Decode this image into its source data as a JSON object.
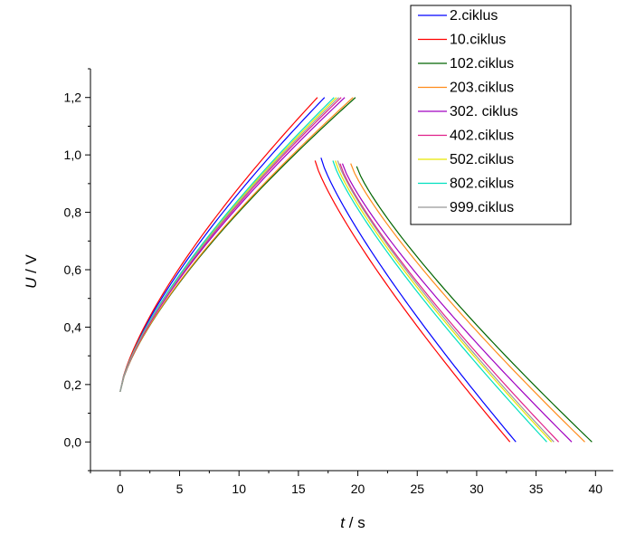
{
  "chart_data": {
    "type": "line",
    "xlabel": {
      "var": "t",
      "unit": " / s"
    },
    "ylabel": {
      "var": "U",
      "unit": " / V"
    },
    "xlim": [
      -2.5,
      41.5
    ],
    "ylim": [
      -0.1,
      1.3
    ],
    "xticks": [
      0,
      5,
      10,
      15,
      20,
      25,
      30,
      35,
      40
    ],
    "xtick_labels": [
      "0",
      "5",
      "10",
      "15",
      "20",
      "25",
      "30",
      "35",
      "40"
    ],
    "yticks": [
      0.0,
      0.2,
      0.4,
      0.6,
      0.8,
      1.0,
      1.2
    ],
    "ytick_labels": [
      "0,0",
      "0,2",
      "0,4",
      "0,6",
      "0,8",
      "1,0",
      "1,2"
    ],
    "grid": false,
    "legend_position": "top-right",
    "series": [
      {
        "name": "2.ciklus",
        "color": "#0000ff",
        "charge_end_t": 17.2,
        "discharge_start_t": 16.9,
        "discharge_start_v": 0.99,
        "discharge_end_t": 33.3
      },
      {
        "name": "10.ciklus",
        "color": "#ff0000",
        "charge_end_t": 16.6,
        "discharge_start_t": 16.4,
        "discharge_start_v": 0.98,
        "discharge_end_t": 32.8
      },
      {
        "name": "102.ciklus",
        "color": "#006400",
        "charge_end_t": 19.8,
        "discharge_start_t": 19.9,
        "discharge_start_v": 0.96,
        "discharge_end_t": 39.7
      },
      {
        "name": "203.ciklus",
        "color": "#ff8c1a",
        "charge_end_t": 19.6,
        "discharge_start_t": 19.4,
        "discharge_start_v": 0.97,
        "discharge_end_t": 39.1
      },
      {
        "name": "302. ciklus",
        "color": "#a000c0",
        "charge_end_t": 18.9,
        "discharge_start_t": 18.7,
        "discharge_start_v": 0.97,
        "discharge_end_t": 38.0
      },
      {
        "name": "402.ciklus",
        "color": "#e0208a",
        "charge_end_t": 18.6,
        "discharge_start_t": 18.5,
        "discharge_start_v": 0.97,
        "discharge_end_t": 36.9
      },
      {
        "name": "502.ciklus",
        "color": "#e6e600",
        "charge_end_t": 18.2,
        "discharge_start_t": 18.1,
        "discharge_start_v": 0.98,
        "discharge_end_t": 36.3
      },
      {
        "name": "802.ciklus",
        "color": "#00e0c0",
        "charge_end_t": 18.0,
        "discharge_start_t": 17.9,
        "discharge_start_v": 0.98,
        "discharge_end_t": 35.9
      },
      {
        "name": "999.ciklus",
        "color": "#999999",
        "charge_end_t": 18.4,
        "discharge_start_t": 18.3,
        "discharge_start_v": 0.98,
        "discharge_end_t": 36.5
      }
    ]
  }
}
